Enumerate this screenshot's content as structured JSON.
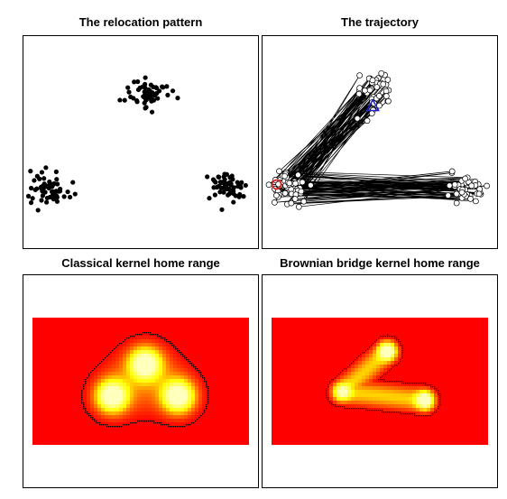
{
  "chart_data": [
    {
      "type": "scatter",
      "title": "The relocation pattern",
      "xlim": [
        0,
        100
      ],
      "ylim": [
        0,
        100
      ],
      "axes": "none",
      "clusters": [
        {
          "center": [
            53,
            73
          ],
          "n": 60,
          "spread": [
            4.5,
            3.5
          ],
          "color": "#000000"
        },
        {
          "center": [
            11,
            29
          ],
          "n": 60,
          "spread": [
            4,
            4
          ],
          "color": "#000000"
        },
        {
          "center": [
            87,
            29
          ],
          "n": 60,
          "spread": [
            4,
            3.5
          ],
          "color": "#000000"
        }
      ]
    },
    {
      "type": "line",
      "title": "The trajectory",
      "xlim": [
        0,
        100
      ],
      "ylim": [
        0,
        100
      ],
      "axes": "none",
      "point_style": "open-circle",
      "start_marker": {
        "shape": "circle",
        "color": "#dd2222",
        "position": [
          6,
          30
        ]
      },
      "end_marker": {
        "shape": "triangle",
        "color": "#2222cc",
        "position": [
          47,
          67
        ]
      },
      "clusters": [
        {
          "center": [
            48,
            74
          ],
          "n": 45,
          "spread": [
            4,
            4.5
          ]
        },
        {
          "center": [
            11,
            28
          ],
          "n": 55,
          "spread": [
            3.5,
            4
          ]
        },
        {
          "center": [
            86,
            28
          ],
          "n": 45,
          "spread": [
            4.5,
            3.5
          ]
        }
      ]
    },
    {
      "type": "heatmap",
      "title": "Classical kernel home range",
      "xlim": [
        0,
        100
      ],
      "ylim": [
        0,
        100
      ],
      "axes": "none",
      "background_color": "#ff0000",
      "contour_color": "#000000",
      "hotspots": [
        {
          "center": [
            52,
            58
          ],
          "intensity": 1.0
        },
        {
          "center": [
            38,
            43
          ],
          "intensity": 1.0
        },
        {
          "center": [
            66,
            43
          ],
          "intensity": 1.0
        }
      ]
    },
    {
      "type": "heatmap",
      "title": "Brownian bridge kernel home range",
      "xlim": [
        0,
        100
      ],
      "ylim": [
        0,
        100
      ],
      "axes": "none",
      "background_color": "#ff0000",
      "contour_color": "#000000",
      "hotspots": [
        {
          "center": [
            53,
            64
          ],
          "intensity": 1.0
        },
        {
          "center": [
            69,
            41
          ],
          "intensity": 1.0
        },
        {
          "center": [
            34,
            45
          ],
          "intensity": 0.7
        }
      ]
    }
  ]
}
